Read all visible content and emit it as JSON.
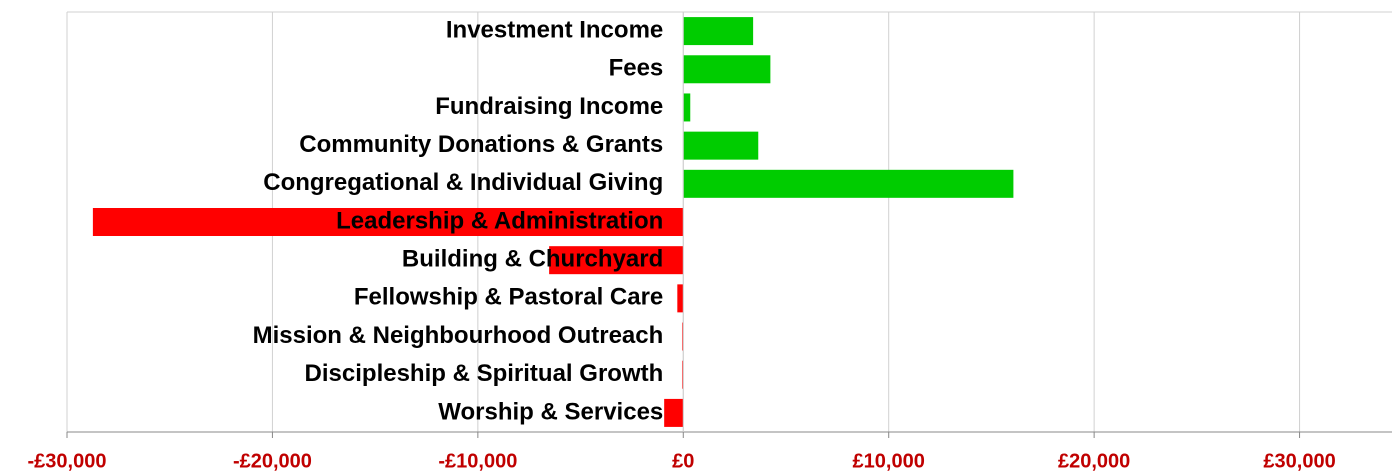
{
  "chart_data": {
    "type": "barh",
    "categories": [
      "Investment Income",
      "Fees",
      "Fundraising Income",
      "Community Donations & Grants",
      "Congregational & Individual Giving",
      "Leadership & Administration",
      "Building & Churchyard",
      "Fellowship & Pastoral Care",
      "Mission & Neighbourhood Outreach",
      "Discipleship & Spiritual Growth",
      "Worship & Services"
    ],
    "values": [
      3400,
      4240,
      340,
      3650,
      16070,
      -28740,
      -6530,
      -290,
      -50,
      -50,
      -930
    ],
    "colors": [
      "#00cc00",
      "#00cc00",
      "#00cc00",
      "#00cc00",
      "#00cc00",
      "#ff0000",
      "#ff0000",
      "#ff0000",
      "#ff0000",
      "#ff0000",
      "#ff0000"
    ],
    "xlim": [
      -30000,
      34500
    ],
    "xticks": [
      {
        "value": -30000,
        "label": "-£30,000"
      },
      {
        "value": -20000,
        "label": "-£20,000"
      },
      {
        "value": -10000,
        "label": "-£10,000"
      },
      {
        "value": 0,
        "label": "£0"
      },
      {
        "value": 10000,
        "label": "£10,000"
      },
      {
        "value": 20000,
        "label": "£20,000"
      },
      {
        "value": 30000,
        "label": "£30,000"
      }
    ],
    "grid": true
  }
}
